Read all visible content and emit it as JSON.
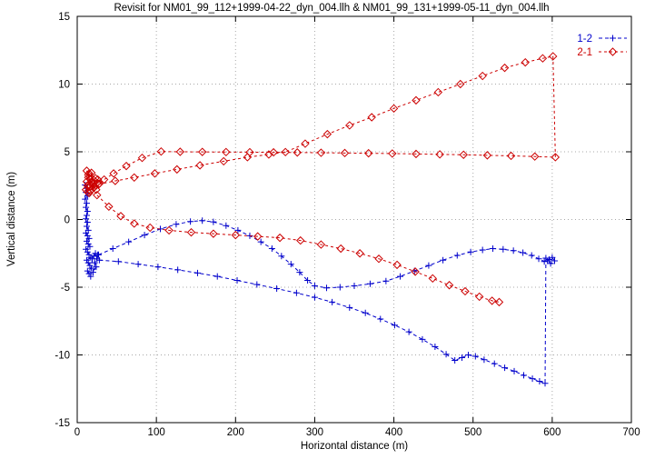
{
  "chart_data": {
    "type": "line",
    "title": "Revisit for NM01_99_112+1999-04-22_dyn_004.llh & NM01_99_131+1999-05-11_dyn_004.llh",
    "xlabel": "Horizontal distance (m)",
    "ylabel": "Vertical distance (m)",
    "xlim": [
      0,
      700
    ],
    "ylim": [
      -15,
      15
    ],
    "xticks": [
      0,
      100,
      200,
      300,
      400,
      500,
      600,
      700
    ],
    "yticks": [
      -15,
      -10,
      -5,
      0,
      5,
      10,
      15
    ],
    "grid": true,
    "grid_color": "#a8a8a8",
    "legend_position": "top-right",
    "series": [
      {
        "name": "1-2",
        "color": "#0000cc",
        "marker": "plus",
        "dash": "4,3",
        "segments": [
          [
            [
              10,
              2.55
            ],
            [
              12,
              2.3
            ],
            [
              11,
              2.0
            ],
            [
              13,
              1.75
            ],
            [
              10,
              1.5
            ],
            [
              12,
              1.2
            ],
            [
              11,
              0.9
            ],
            [
              13,
              0.6
            ],
            [
              12,
              0.3
            ],
            [
              11,
              0.05
            ],
            [
              13,
              -0.2
            ],
            [
              12,
              -0.5
            ],
            [
              14,
              -0.8
            ],
            [
              11,
              -1.0
            ],
            [
              13,
              -1.2
            ],
            [
              15,
              -1.4
            ],
            [
              12,
              -1.6
            ],
            [
              14,
              -1.8
            ],
            [
              16,
              -2.0
            ],
            [
              11,
              -2.2
            ],
            [
              13,
              -2.4
            ],
            [
              15,
              -2.6
            ],
            [
              17,
              -2.8
            ],
            [
              12,
              -3.0
            ],
            [
              14,
              -3.2
            ],
            [
              16,
              -3.4
            ],
            [
              18,
              -3.6
            ],
            [
              13,
              -3.8
            ],
            [
              15,
              -4.0
            ],
            [
              17,
              -4.2
            ],
            [
              19,
              -2.9
            ],
            [
              21,
              -2.7
            ],
            [
              23,
              -2.5
            ],
            [
              25,
              -2.9
            ],
            [
              22,
              -3.2
            ],
            [
              24,
              -3.5
            ],
            [
              20,
              -3.9
            ],
            [
              26,
              -2.6
            ]
          ],
          [
            [
              27,
              -2.6
            ],
            [
              45,
              -2.15
            ],
            [
              65,
              -1.65
            ],
            [
              85,
              -1.15
            ],
            [
              105,
              -0.7
            ],
            [
              125,
              -0.35
            ],
            [
              143,
              -0.15
            ],
            [
              158,
              -0.08
            ],
            [
              172,
              -0.18
            ],
            [
              188,
              -0.45
            ],
            [
              203,
              -0.8
            ],
            [
              218,
              -1.2
            ],
            [
              232,
              -1.65
            ],
            [
              246,
              -2.15
            ],
            [
              258,
              -2.7
            ],
            [
              270,
              -3.3
            ],
            [
              281,
              -3.9
            ],
            [
              291,
              -4.5
            ],
            [
              300,
              -4.9
            ],
            [
              315,
              -5.05
            ],
            [
              332,
              -5.0
            ],
            [
              350,
              -4.9
            ],
            [
              370,
              -4.75
            ],
            [
              390,
              -4.55
            ],
            [
              408,
              -4.2
            ],
            [
              426,
              -3.8
            ],
            [
              444,
              -3.4
            ],
            [
              462,
              -3.0
            ],
            [
              480,
              -2.65
            ],
            [
              497,
              -2.4
            ],
            [
              512,
              -2.25
            ],
            [
              525,
              -2.15
            ],
            [
              538,
              -2.2
            ],
            [
              551,
              -2.3
            ],
            [
              563,
              -2.45
            ],
            [
              574,
              -2.65
            ],
            [
              583,
              -2.9
            ],
            [
              590,
              -3.1
            ],
            [
              596,
              -2.95
            ],
            [
              600,
              -2.8
            ],
            [
              603,
              -3.05
            ],
            [
              598,
              -3.25
            ],
            [
              594,
              -3.05
            ]
          ],
          [
            [
              28,
              -3.0
            ],
            [
              52,
              -3.1
            ],
            [
              77,
              -3.3
            ],
            [
              102,
              -3.5
            ],
            [
              127,
              -3.72
            ],
            [
              152,
              -3.95
            ],
            [
              177,
              -4.2
            ],
            [
              202,
              -4.5
            ],
            [
              227,
              -4.8
            ],
            [
              252,
              -5.1
            ],
            [
              277,
              -5.42
            ],
            [
              300,
              -5.75
            ],
            [
              322,
              -6.1
            ],
            [
              344,
              -6.5
            ],
            [
              364,
              -6.9
            ],
            [
              383,
              -7.35
            ],
            [
              401,
              -7.8
            ],
            [
              419,
              -8.3
            ],
            [
              436,
              -8.85
            ],
            [
              452,
              -9.4
            ],
            [
              466,
              -9.95
            ],
            [
              477,
              -10.4
            ],
            [
              486,
              -10.2
            ],
            [
              494,
              -10.0
            ],
            [
              503,
              -10.1
            ],
            [
              514,
              -10.35
            ],
            [
              527,
              -10.65
            ],
            [
              540,
              -10.95
            ],
            [
              552,
              -11.2
            ],
            [
              564,
              -11.5
            ],
            [
              575,
              -11.75
            ],
            [
              584,
              -11.95
            ],
            [
              591,
              -12.1
            ],
            [
              592,
              -2.85
            ]
          ]
        ]
      },
      {
        "name": "2-1",
        "color": "#cc0000",
        "marker": "diamond",
        "dash": "3,3",
        "segments": [
          [
            [
              11,
              2.2
            ],
            [
              13,
              2.5
            ],
            [
              12,
              2.8
            ],
            [
              14,
              3.1
            ],
            [
              15,
              3.4
            ],
            [
              16,
              2.1
            ],
            [
              17,
              2.45
            ],
            [
              18,
              2.8
            ],
            [
              14,
              3.3
            ],
            [
              12,
              3.6
            ],
            [
              19,
              2.25
            ],
            [
              20,
              2.6
            ],
            [
              16,
              3.0
            ],
            [
              21,
              2.9
            ],
            [
              18,
              3.45
            ],
            [
              22,
              2.4
            ],
            [
              15,
              1.95
            ],
            [
              13,
              2.05
            ],
            [
              23,
              3.05
            ],
            [
              25,
              2.7
            ],
            [
              24,
              2.2
            ],
            [
              26,
              2.95
            ]
          ],
          [
            [
              27,
              2.6
            ],
            [
              48,
              2.85
            ],
            [
              72,
              3.1
            ],
            [
              98,
              3.4
            ],
            [
              126,
              3.7
            ],
            [
              155,
              4.0
            ],
            [
              185,
              4.3
            ],
            [
              215,
              4.6
            ],
            [
              242,
              4.8
            ],
            [
              263,
              4.98
            ],
            [
              288,
              5.6
            ],
            [
              316,
              6.3
            ],
            [
              344,
              6.95
            ],
            [
              372,
              7.55
            ],
            [
              400,
              8.2
            ],
            [
              428,
              8.8
            ],
            [
              456,
              9.4
            ],
            [
              484,
              10.0
            ],
            [
              512,
              10.6
            ],
            [
              540,
              11.2
            ],
            [
              566,
              11.6
            ],
            [
              588,
              11.9
            ],
            [
              601,
              12.05
            ],
            [
              604,
              4.6
            ],
            [
              578,
              4.65
            ],
            [
              548,
              4.7
            ],
            [
              518,
              4.74
            ],
            [
              488,
              4.78
            ],
            [
              458,
              4.81
            ],
            [
              428,
              4.84
            ],
            [
              398,
              4.87
            ],
            [
              368,
              4.89
            ],
            [
              338,
              4.91
            ],
            [
              308,
              4.93
            ],
            [
              278,
              4.95
            ],
            [
              248,
              4.96
            ],
            [
              218,
              4.97
            ],
            [
              188,
              4.98
            ],
            [
              158,
              4.99
            ],
            [
              130,
              5.0
            ],
            [
              106,
              5.02
            ],
            [
              82,
              4.55
            ],
            [
              62,
              3.95
            ],
            [
              46,
              3.4
            ],
            [
              34,
              2.95
            ],
            [
              28,
              2.65
            ]
          ],
          [
            [
              25,
              1.8
            ],
            [
              40,
              0.95
            ],
            [
              55,
              0.25
            ],
            [
              72,
              -0.3
            ],
            [
              92,
              -0.6
            ],
            [
              116,
              -0.8
            ],
            [
              144,
              -0.95
            ],
            [
              172,
              -1.05
            ],
            [
              200,
              -1.15
            ],
            [
              228,
              -1.25
            ],
            [
              256,
              -1.35
            ],
            [
              282,
              -1.55
            ],
            [
              308,
              -1.85
            ],
            [
              333,
              -2.15
            ],
            [
              357,
              -2.5
            ],
            [
              381,
              -2.9
            ],
            [
              404,
              -3.35
            ],
            [
              427,
              -3.85
            ],
            [
              449,
              -4.35
            ],
            [
              470,
              -4.85
            ],
            [
              490,
              -5.3
            ],
            [
              508,
              -5.7
            ],
            [
              524,
              -6.0
            ],
            [
              533,
              -6.1
            ]
          ]
        ]
      }
    ]
  }
}
